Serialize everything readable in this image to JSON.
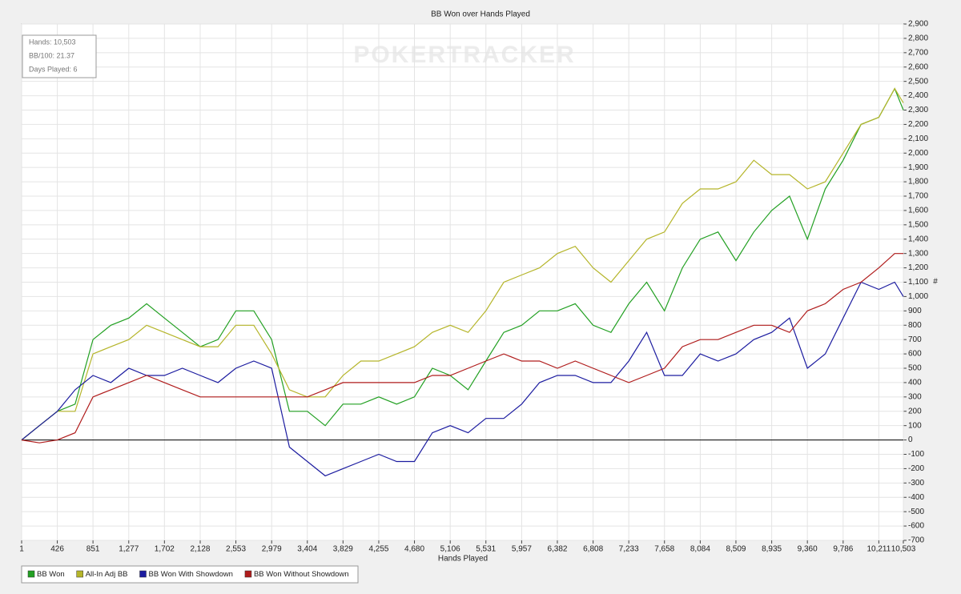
{
  "chart_data": {
    "type": "line",
    "title": "BB Won over Hands Played",
    "x_label": "Hands Played",
    "y_label": "#",
    "watermark": "POKERTRACKER",
    "stats": [
      "Hands: 10,503",
      "BB/100: 21.37",
      "Days Played: 6"
    ],
    "legend": "bottom",
    "grid": true,
    "xlim": [
      1,
      10503
    ],
    "xticks": [
      1,
      426,
      851,
      {
        "value": 1277,
        "label": "1,277"
      },
      {
        "value": 1702,
        "label": "1,702"
      },
      {
        "value": 2128,
        "label": "2,128"
      },
      {
        "value": 2553,
        "label": "2,553"
      },
      {
        "value": 2979,
        "label": "2,979"
      },
      {
        "value": 3404,
        "label": "3,404"
      },
      {
        "value": 3829,
        "label": "3,829"
      },
      {
        "value": 4255,
        "label": "4,255"
      },
      {
        "value": 4680,
        "label": "4,680"
      },
      {
        "value": 5106,
        "label": "5,106"
      },
      {
        "value": 5531,
        "label": "5,531"
      },
      {
        "value": 5957,
        "label": "5,957"
      },
      {
        "value": 6382,
        "label": "6,382"
      },
      {
        "value": 6808,
        "label": "6,808"
      },
      {
        "value": 7233,
        "label": "7,233"
      },
      {
        "value": 7658,
        "label": "7,658"
      },
      {
        "value": 8084,
        "label": "8,084"
      },
      {
        "value": 8509,
        "label": "8,509"
      },
      {
        "value": 8935,
        "label": "8,935"
      },
      {
        "value": 9360,
        "label": "9,360"
      },
      {
        "value": 9786,
        "label": "9,786"
      },
      {
        "value": 10211,
        "label": "10,211"
      },
      {
        "value": 10503,
        "label": "10,503"
      }
    ],
    "ylim": [
      -700,
      2900
    ],
    "yticks": [
      -700,
      -600,
      -500,
      -400,
      -300,
      -200,
      -100,
      0,
      100,
      200,
      300,
      400,
      500,
      600,
      700,
      800,
      900,
      {
        "value": 1000,
        "label": "1,000"
      },
      {
        "value": 1100,
        "label": "1,100"
      },
      {
        "value": 1200,
        "label": "1,200"
      },
      {
        "value": 1300,
        "label": "1,300"
      },
      {
        "value": 1400,
        "label": "1,400"
      },
      {
        "value": 1500,
        "label": "1,500"
      },
      {
        "value": 1600,
        "label": "1,600"
      },
      {
        "value": 1700,
        "label": "1,700"
      },
      {
        "value": 1800,
        "label": "1,800"
      },
      {
        "value": 1900,
        "label": "1,900"
      },
      {
        "value": 2000,
        "label": "2,000"
      },
      {
        "value": 2100,
        "label": "2,100"
      },
      {
        "value": 2200,
        "label": "2,200"
      },
      {
        "value": 2300,
        "label": "2,300"
      },
      {
        "value": 2400,
        "label": "2,400"
      },
      {
        "value": 2500,
        "label": "2,500"
      },
      {
        "value": 2600,
        "label": "2,600"
      },
      {
        "value": 2700,
        "label": "2,700"
      },
      {
        "value": 2800,
        "label": "2,800"
      },
      {
        "value": 2900,
        "label": "2,900"
      }
    ],
    "x": [
      1,
      213,
      426,
      638,
      851,
      1064,
      1277,
      1490,
      1702,
      1915,
      2128,
      2340,
      2553,
      2766,
      2979,
      3191,
      3404,
      3617,
      3829,
      4042,
      4255,
      4468,
      4680,
      4893,
      5106,
      5319,
      5531,
      5744,
      5957,
      6170,
      6382,
      6595,
      6808,
      7020,
      7233,
      7446,
      7658,
      7871,
      8084,
      8296,
      8509,
      8722,
      8935,
      9148,
      9360,
      9573,
      9786,
      9999,
      10211,
      10400,
      10503
    ],
    "series": [
      {
        "name": "BB Won",
        "color": "#22a022",
        "values": [
          0,
          100,
          200,
          250,
          700,
          800,
          850,
          950,
          850,
          750,
          650,
          700,
          900,
          900,
          700,
          200,
          200,
          100,
          250,
          250,
          300,
          250,
          300,
          500,
          450,
          350,
          550,
          750,
          800,
          900,
          900,
          950,
          800,
          750,
          950,
          1100,
          900,
          1200,
          1400,
          1450,
          1250,
          1450,
          1600,
          1700,
          1400,
          1750,
          1950,
          2200,
          2250,
          2450,
          2300
        ]
      },
      {
        "name": "All-In Adj BB",
        "color": "#b5b52a",
        "values": [
          0,
          100,
          200,
          200,
          600,
          650,
          700,
          800,
          750,
          700,
          650,
          650,
          800,
          800,
          600,
          350,
          300,
          300,
          450,
          550,
          550,
          600,
          650,
          750,
          800,
          750,
          900,
          1100,
          1150,
          1200,
          1300,
          1350,
          1200,
          1100,
          1250,
          1400,
          1450,
          1650,
          1750,
          1750,
          1800,
          1950,
          1850,
          1850,
          1750,
          1800,
          2000,
          2200,
          2250,
          2450,
          2350
        ]
      },
      {
        "name": "BB Won With Showdown",
        "color": "#1c1ca0",
        "values": [
          0,
          100,
          200,
          350,
          450,
          400,
          500,
          450,
          450,
          500,
          450,
          400,
          500,
          550,
          500,
          -50,
          -150,
          -250,
          -200,
          -150,
          -100,
          -150,
          -150,
          50,
          100,
          50,
          150,
          150,
          250,
          400,
          450,
          450,
          400,
          400,
          550,
          750,
          450,
          450,
          600,
          550,
          600,
          700,
          750,
          850,
          500,
          600,
          850,
          1100,
          1050,
          1100,
          1000
        ]
      },
      {
        "name": "BB Won Without Showdown",
        "color": "#b01c1c",
        "values": [
          0,
          -20,
          0,
          50,
          300,
          350,
          400,
          450,
          400,
          350,
          300,
          300,
          300,
          300,
          300,
          300,
          300,
          350,
          400,
          400,
          400,
          400,
          400,
          450,
          450,
          500,
          550,
          600,
          550,
          550,
          500,
          550,
          500,
          450,
          400,
          450,
          500,
          650,
          700,
          700,
          750,
          800,
          800,
          750,
          900,
          950,
          1050,
          1100,
          1200,
          1300,
          1300
        ]
      }
    ]
  }
}
